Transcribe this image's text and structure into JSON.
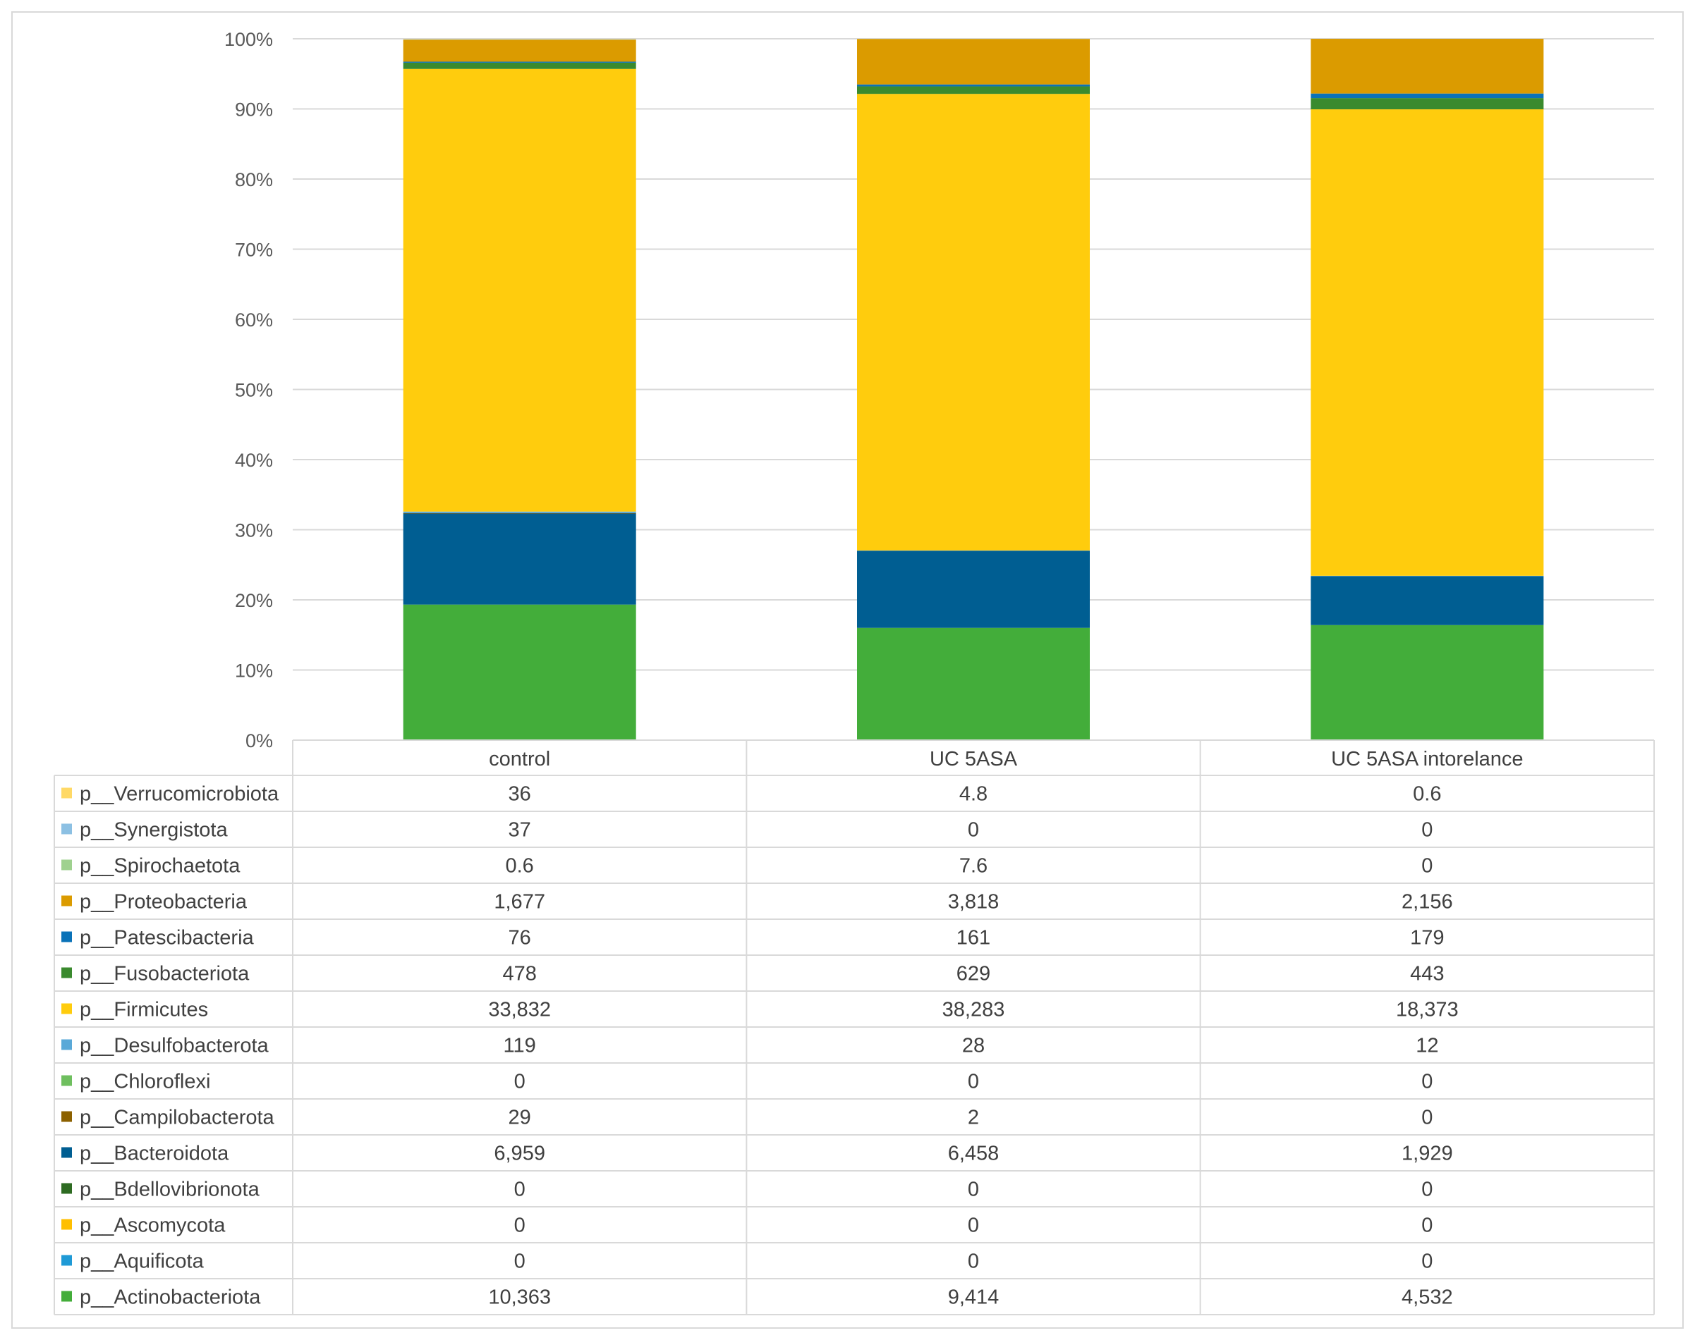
{
  "chart_data": {
    "type": "bar",
    "stacked": "percent",
    "title": "",
    "xlabel": "",
    "ylabel": "",
    "ylim": [
      0,
      100
    ],
    "y_ticks": [
      "0%",
      "10%",
      "20%",
      "30%",
      "40%",
      "50%",
      "60%",
      "70%",
      "80%",
      "90%",
      "100%"
    ],
    "categories": [
      "control",
      "UC 5ASA",
      "UC 5ASA intorelance"
    ],
    "series": [
      {
        "name": "p__Actinobacteriota",
        "color": "#43ad3a",
        "values": [
          10363,
          9414,
          4532
        ],
        "labels": [
          "10,363",
          "9,414",
          "4,532"
        ]
      },
      {
        "name": "p__Aquificota",
        "color": "#1f9ad6",
        "values": [
          0,
          0,
          0
        ],
        "labels": [
          "0",
          "0",
          "0"
        ]
      },
      {
        "name": "p__Ascomycota",
        "color": "#ffbf00",
        "values": [
          0,
          0,
          0
        ],
        "labels": [
          "0",
          "0",
          "0"
        ]
      },
      {
        "name": "p__Bdellovibrionota",
        "color": "#2e6b22",
        "values": [
          0,
          0,
          0
        ],
        "labels": [
          "0",
          "0",
          "0"
        ]
      },
      {
        "name": "p__Bacteroidota",
        "color": "#005e92",
        "values": [
          6959,
          6458,
          1929
        ],
        "labels": [
          "6,959",
          "6,458",
          "1,929"
        ]
      },
      {
        "name": "p__Campilobacterota",
        "color": "#8c6100",
        "values": [
          29,
          2,
          0
        ],
        "labels": [
          "29",
          "2",
          "0"
        ]
      },
      {
        "name": "p__Chloroflexi",
        "color": "#6fbf5f",
        "values": [
          0,
          0,
          0
        ],
        "labels": [
          "0",
          "0",
          "0"
        ]
      },
      {
        "name": "p__Desulfobacterota",
        "color": "#5aa9d8",
        "values": [
          119,
          28,
          12
        ],
        "labels": [
          "119",
          "28",
          "12"
        ]
      },
      {
        "name": "p__Firmicutes",
        "color": "#ffcc0d",
        "values": [
          33832,
          38283,
          18373
        ],
        "labels": [
          "33,832",
          "38,283",
          "18,373"
        ]
      },
      {
        "name": "p__Fusobacteriota",
        "color": "#3a8a2e",
        "values": [
          478,
          629,
          443
        ],
        "labels": [
          "478",
          "629",
          "443"
        ]
      },
      {
        "name": "p__Patescibacteria",
        "color": "#0a72b8",
        "values": [
          76,
          161,
          179
        ],
        "labels": [
          "76",
          "161",
          "179"
        ]
      },
      {
        "name": "p__Proteobacteria",
        "color": "#db9b00",
        "values": [
          1677,
          3818,
          2156
        ],
        "labels": [
          "1,677",
          "3,818",
          "2,156"
        ]
      },
      {
        "name": "p__Spirochaetota",
        "color": "#9fd18f",
        "values": [
          0.6,
          7.6,
          0
        ],
        "labels": [
          "0.6",
          "7.6",
          "0"
        ]
      },
      {
        "name": "p__Synergistota",
        "color": "#8cc0e3",
        "values": [
          37,
          0,
          0
        ],
        "labels": [
          "37",
          "0",
          "0"
        ]
      },
      {
        "name": "p__Verrucomicrobiota",
        "color": "#ffd966",
        "values": [
          36,
          4.8,
          0.6
        ],
        "labels": [
          "36",
          "4.8",
          "0.6"
        ]
      }
    ],
    "table_row_order": [
      "p__Verrucomicrobiota",
      "p__Synergistota",
      "p__Spirochaetota",
      "p__Proteobacteria",
      "p__Patescibacteria",
      "p__Fusobacteriota",
      "p__Firmicutes",
      "p__Desulfobacterota",
      "p__Chloroflexi",
      "p__Campilobacterota",
      "p__Bacteroidota",
      "p__Bdellovibrionota",
      "p__Ascomycota",
      "p__Aquificota",
      "p__Actinobacteriota"
    ],
    "grid": true,
    "legend": "data table below chart"
  }
}
